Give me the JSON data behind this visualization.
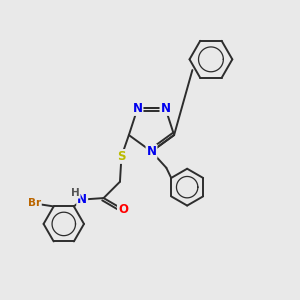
{
  "background_color": "#e9e9e9",
  "bond_color": "#2d2d2d",
  "bond_width": 1.4,
  "atom_colors": {
    "N": "#0000ee",
    "S": "#bbbb00",
    "O": "#ff0000",
    "Br": "#bb6600",
    "H": "#555555",
    "C": "#2d2d2d"
  },
  "font_size_atom": 8.5,
  "font_size_h": 7.5,
  "font_size_br": 7.5
}
